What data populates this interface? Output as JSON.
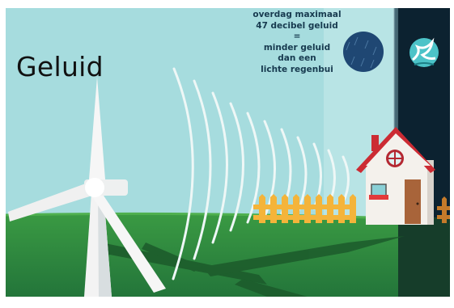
{
  "title": "Geluid",
  "caption": {
    "text": "overdag maximaal\n47 decibel geluid\n=\nminder geluid\ndan een\nlichte regenbui"
  },
  "colors": {
    "sky": "#a4dcde",
    "night": "#0d2331",
    "grass": "#2e8f3a",
    "ground_dark": "#1d5f2d",
    "fence": "#f4b43a",
    "roof": "#cc2b33",
    "house": "#f4f1ec",
    "rain_cloud": "#1f4773",
    "logo_accent": "#4cc3c8"
  },
  "icons": {
    "wind_turbine": "wind-turbine-icon",
    "rain_cloud": "rain-cloud-icon",
    "house": "house-icon",
    "logo": "river-logo-icon"
  }
}
